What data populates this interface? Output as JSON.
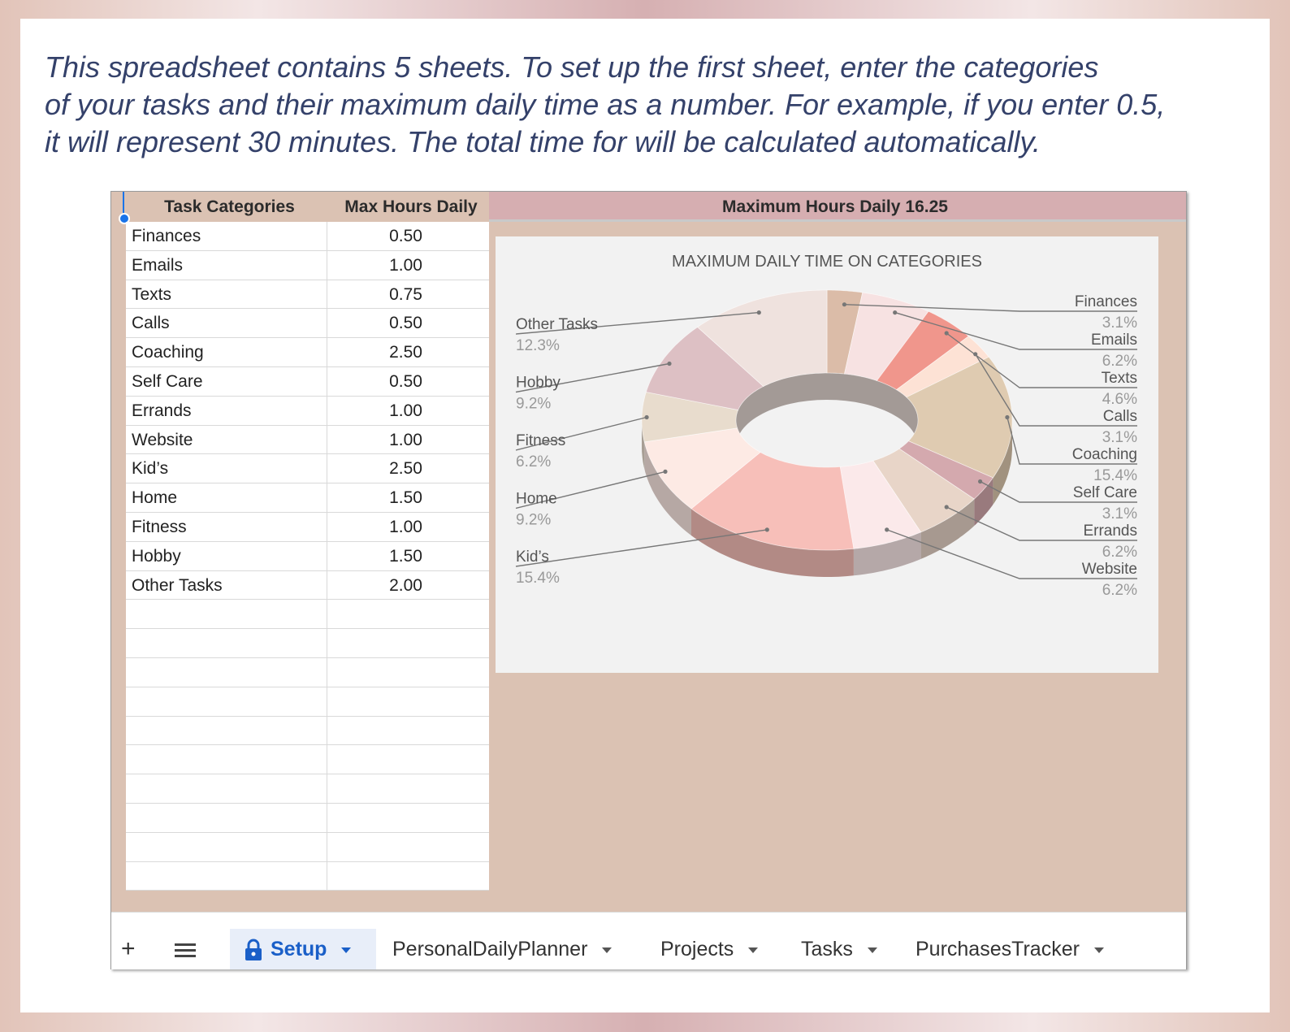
{
  "intro_text": "   This spreadsheet contains 5 sheets. To set up the first sheet, enter the categories\nof your tasks and their maximum daily time as a number. For example, if you enter 0.5,\nit will represent 30 minutes. The total time for will be calculated automatically.",
  "sheet": {
    "col_category_header": "Task Categories",
    "col_hours_header": "Max Hours Daily",
    "total_label": "Maximum Hours Daily",
    "total_value": "16.25",
    "rows": [
      {
        "category": "Finances",
        "hours": "0.50"
      },
      {
        "category": "Emails",
        "hours": "1.00"
      },
      {
        "category": "Texts",
        "hours": "0.75"
      },
      {
        "category": "Calls",
        "hours": "0.50"
      },
      {
        "category": "Coaching",
        "hours": "2.50"
      },
      {
        "category": "Self Care",
        "hours": "0.50"
      },
      {
        "category": "Errands",
        "hours": "1.00"
      },
      {
        "category": "Website",
        "hours": "1.00"
      },
      {
        "category": "Kid’s",
        "hours": "2.50"
      },
      {
        "category": "Home",
        "hours": "1.50"
      },
      {
        "category": "Fitness",
        "hours": "1.00"
      },
      {
        "category": "Hobby",
        "hours": "1.50"
      },
      {
        "category": "Other Tasks",
        "hours": "2.00"
      },
      {
        "category": "",
        "hours": ""
      },
      {
        "category": "",
        "hours": ""
      },
      {
        "category": "",
        "hours": ""
      },
      {
        "category": "",
        "hours": ""
      },
      {
        "category": "",
        "hours": ""
      },
      {
        "category": "",
        "hours": ""
      },
      {
        "category": "",
        "hours": ""
      },
      {
        "category": "",
        "hours": ""
      },
      {
        "category": "",
        "hours": ""
      },
      {
        "category": "",
        "hours": ""
      }
    ]
  },
  "chart_data": {
    "type": "pie",
    "style": "3d-donut",
    "title": "MAXIMUM DAILY TIME ON CATEGORIES",
    "slices": [
      {
        "name": "Finances",
        "value": 0.5,
        "percent": "3.1%",
        "color": "#dbbca8"
      },
      {
        "name": "Emails",
        "value": 1.0,
        "percent": "6.2%",
        "color": "#f7e2e2"
      },
      {
        "name": "Texts",
        "value": 0.75,
        "percent": "4.6%",
        "color": "#f0968c"
      },
      {
        "name": "Calls",
        "value": 0.5,
        "percent": "3.1%",
        "color": "#fde2d5"
      },
      {
        "name": "Coaching",
        "value": 2.5,
        "percent": "15.4%",
        "color": "#dfcbb1"
      },
      {
        "name": "Self Care",
        "value": 0.5,
        "percent": "3.1%",
        "color": "#d4a9ae"
      },
      {
        "name": "Errands",
        "value": 1.0,
        "percent": "6.2%",
        "color": "#e8d5c8"
      },
      {
        "name": "Website",
        "value": 1.0,
        "percent": "6.2%",
        "color": "#fbe9ea"
      },
      {
        "name": "Kid’s",
        "value": 2.5,
        "percent": "15.4%",
        "color": "#f7bfb9"
      },
      {
        "name": "Home",
        "value": 1.5,
        "percent": "9.2%",
        "color": "#fdeae4"
      },
      {
        "name": "Fitness",
        "value": 1.0,
        "percent": "6.2%",
        "color": "#e8dccd"
      },
      {
        "name": "Hobby",
        "value": 1.5,
        "percent": "9.2%",
        "color": "#ddc0c4"
      },
      {
        "name": "Other Tasks",
        "value": 2.0,
        "percent": "12.3%",
        "color": "#efe2de"
      }
    ],
    "legend_right": [
      "Finances",
      "Emails",
      "Texts",
      "Calls",
      "Coaching",
      "Self Care",
      "Errands",
      "Website"
    ],
    "legend_left": [
      "Other Tasks",
      "Hobby",
      "Fitness",
      "Home",
      "Kid’s"
    ]
  },
  "tabs": {
    "add_icon": "+",
    "menu_icon": "hamburger-icon",
    "items": [
      {
        "label": "Setup",
        "active": true,
        "locked": true
      },
      {
        "label": "PersonalDailyPlanner",
        "active": false
      },
      {
        "label": "Projects",
        "active": false
      },
      {
        "label": "Tasks",
        "active": false
      },
      {
        "label": "PurchasesTracker",
        "active": false
      }
    ]
  }
}
